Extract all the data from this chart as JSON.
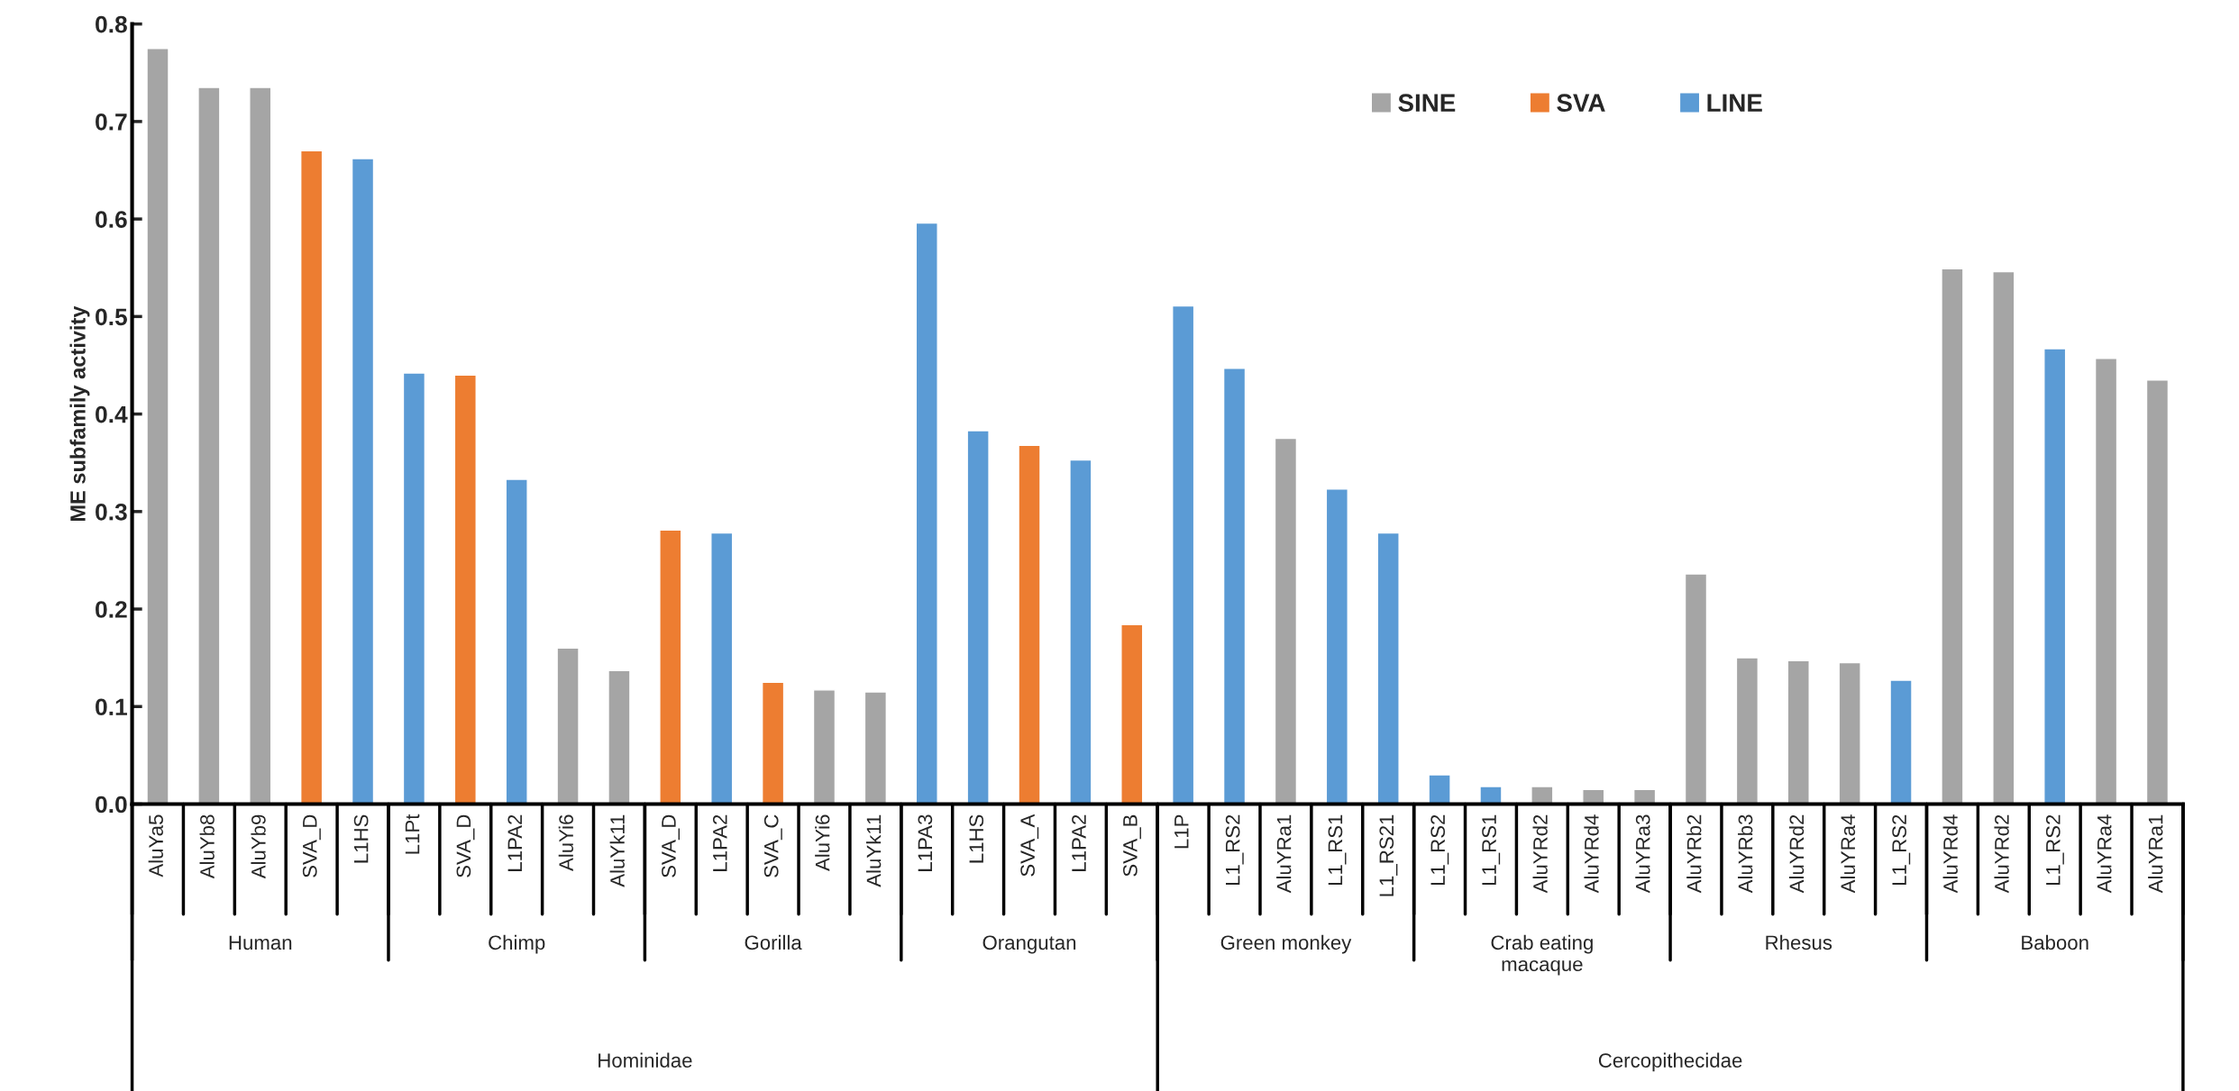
{
  "chart_data": {
    "type": "bar",
    "ylabel": "ME subfamily activity",
    "categories": [
      "AluYa5",
      "AluYb8",
      "AluYb9",
      "SVA_D",
      "L1HS",
      "L1Pt",
      "SVA_D",
      "L1PA2",
      "AluYi6",
      "AluYk11",
      "SVA_D",
      "L1PA2",
      "SVA_C",
      "AluYi6",
      "AluYk11",
      "L1PA3",
      "L1HS",
      "SVA_A",
      "L1PA2",
      "SVA_B",
      "L1P",
      "L1_RS2",
      "AluYRa1",
      "L1_RS1",
      "L1_RS21",
      "L1_RS2",
      "L1_RS1",
      "AluYRd2",
      "AluYRd4",
      "AluYRa3",
      "AluYRb2",
      "AluYRb3",
      "AluYRd2",
      "AluYRa4",
      "L1_RS2",
      "AluYRd4",
      "AluYRd2",
      "L1_RS2",
      "AluYRa4",
      "AluYRa1"
    ],
    "series": [
      {
        "name": "SINE",
        "color": "#a5a5a5",
        "values": [
          0.775,
          0.735,
          0.735,
          null,
          null,
          null,
          null,
          null,
          0.16,
          0.137,
          null,
          null,
          null,
          0.117,
          0.115,
          null,
          null,
          null,
          null,
          null,
          null,
          null,
          0.375,
          null,
          null,
          null,
          null,
          0.018,
          0.015,
          0.015,
          0.236,
          0.15,
          0.147,
          0.145,
          null,
          0.549,
          0.546,
          null,
          0.457,
          0.435
        ]
      },
      {
        "name": "SVA",
        "color": "#ed7d31",
        "values": [
          null,
          null,
          null,
          0.67,
          null,
          null,
          0.44,
          null,
          null,
          null,
          0.281,
          null,
          0.125,
          null,
          null,
          null,
          null,
          0.368,
          null,
          0.184,
          null,
          null,
          null,
          null,
          null,
          null,
          null,
          null,
          null,
          null,
          null,
          null,
          null,
          null,
          null,
          null,
          null,
          null,
          null,
          null
        ]
      },
      {
        "name": "LINE",
        "color": "#5b9bd5",
        "values": [
          null,
          null,
          null,
          null,
          0.662,
          0.442,
          null,
          0.333,
          null,
          null,
          null,
          0.278,
          null,
          null,
          null,
          0.596,
          0.383,
          null,
          0.353,
          null,
          0.511,
          0.447,
          null,
          0.323,
          0.278,
          0.03,
          0.018,
          null,
          null,
          null,
          null,
          null,
          null,
          null,
          0.127,
          null,
          null,
          0.467,
          null,
          null
        ]
      }
    ],
    "ylim": [
      0,
      0.8
    ],
    "yticks": [
      {
        "value": 0,
        "label": "0.0"
      },
      0.1,
      0.2,
      0.3,
      0.4,
      0.5,
      0.6,
      0.7,
      0.8
    ],
    "annotations": [
      "Human",
      "Chimp",
      "Gorilla",
      "Orangutan",
      "Green monkey",
      "Crab eating\nmacaque",
      "Rhesus",
      "Baboon",
      "Hominidae",
      "Cercopithecidae"
    ],
    "legend": "top right",
    "grid": false
  }
}
